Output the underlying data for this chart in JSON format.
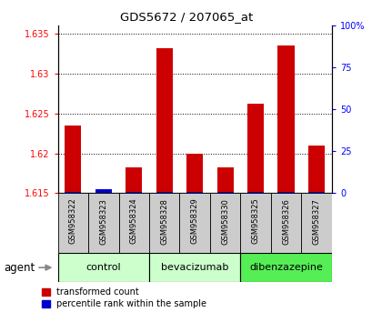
{
  "title": "GDS5672 / 207065_at",
  "samples": [
    "GSM958322",
    "GSM958323",
    "GSM958324",
    "GSM958328",
    "GSM958329",
    "GSM958330",
    "GSM958325",
    "GSM958326",
    "GSM958327"
  ],
  "red_values": [
    1.6235,
    1.615,
    1.6182,
    1.6332,
    1.62,
    1.6182,
    1.6262,
    1.6335,
    1.621
  ],
  "blue_values": [
    1.0,
    2.5,
    1.0,
    1.0,
    1.0,
    1.0,
    1.0,
    1.0,
    1.0
  ],
  "ylim_left": [
    1.615,
    1.636
  ],
  "ylim_right": [
    0,
    100
  ],
  "yticks_left": [
    1.615,
    1.62,
    1.625,
    1.63,
    1.635
  ],
  "yticks_right": [
    0,
    25,
    50,
    75,
    100
  ],
  "ytick_labels_left": [
    "1.615",
    "1.62",
    "1.625",
    "1.63",
    "1.635"
  ],
  "ytick_labels_right": [
    "0",
    "25",
    "50",
    "75",
    "100%"
  ],
  "groups": [
    {
      "label": "control",
      "indices": [
        0,
        1,
        2
      ],
      "color": "#ccffcc"
    },
    {
      "label": "bevacizumab",
      "indices": [
        3,
        4,
        5
      ],
      "color": "#ccffcc"
    },
    {
      "label": "dibenzazepine",
      "indices": [
        6,
        7,
        8
      ],
      "color": "#55ee55"
    }
  ],
  "bar_width": 0.55,
  "red_color": "#cc0000",
  "blue_color": "#0000cc",
  "background_plot": "#ffffff",
  "background_sample": "#cccccc",
  "agent_label": "agent",
  "legend": [
    "transformed count",
    "percentile rank within the sample"
  ]
}
